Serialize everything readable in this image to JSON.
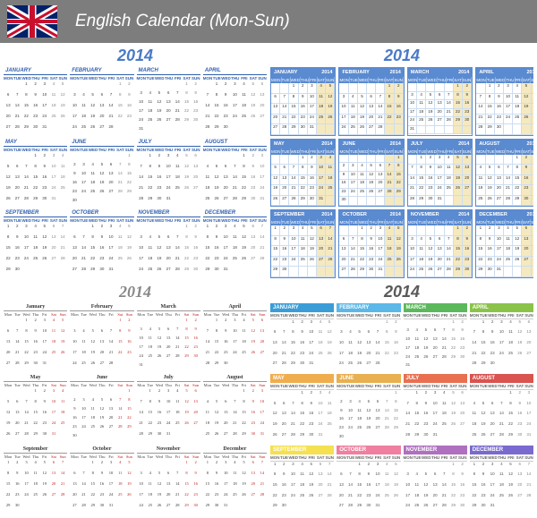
{
  "title": "English Calendar (Mon-Sun)",
  "year": "2014",
  "dow": [
    "MON",
    "TUE",
    "WED",
    "THU",
    "FRI",
    "SAT",
    "SUN"
  ],
  "dow_short": [
    "Mon",
    "Tue",
    "Wed",
    "Thu",
    "Fri",
    "Sat",
    "Sun"
  ],
  "months": [
    {
      "name": "JANUARY",
      "short": "January",
      "start": 2,
      "len": 31
    },
    {
      "name": "FEBRUARY",
      "short": "February",
      "start": 5,
      "len": 28
    },
    {
      "name": "MARCH",
      "short": "March",
      "start": 5,
      "len": 31
    },
    {
      "name": "APRIL",
      "short": "April",
      "start": 1,
      "len": 30
    },
    {
      "name": "MAY",
      "short": "May",
      "start": 3,
      "len": 31
    },
    {
      "name": "JUNE",
      "short": "June",
      "start": 6,
      "len": 30
    },
    {
      "name": "JULY",
      "short": "July",
      "start": 1,
      "len": 31
    },
    {
      "name": "AUGUST",
      "short": "August",
      "start": 4,
      "len": 31
    },
    {
      "name": "SEPTEMBER",
      "short": "September",
      "start": 0,
      "len": 30
    },
    {
      "name": "OCTOBER",
      "short": "October",
      "start": 2,
      "len": 31
    },
    {
      "name": "NOVEMBER",
      "short": "November",
      "start": 5,
      "len": 30
    },
    {
      "name": "DECEMBER",
      "short": "December",
      "start": 0,
      "len": 31
    }
  ],
  "colors": {
    "header_bg": "#7d7d7d",
    "style_a_accent": "#3060b0",
    "style_b_accent": "#5a8ad0",
    "style_b_weekend": "#f5e9c0",
    "style_c_weekend": "#c02020",
    "style_d": [
      "#3a9dd8",
      "#5bb8e8",
      "#5cb85c",
      "#8bc34a",
      "#f0ad4e",
      "#e8b050",
      "#e87050",
      "#d9534f",
      "#f5e050",
      "#f080a0",
      "#b070c0",
      "#7a6ad0"
    ]
  }
}
